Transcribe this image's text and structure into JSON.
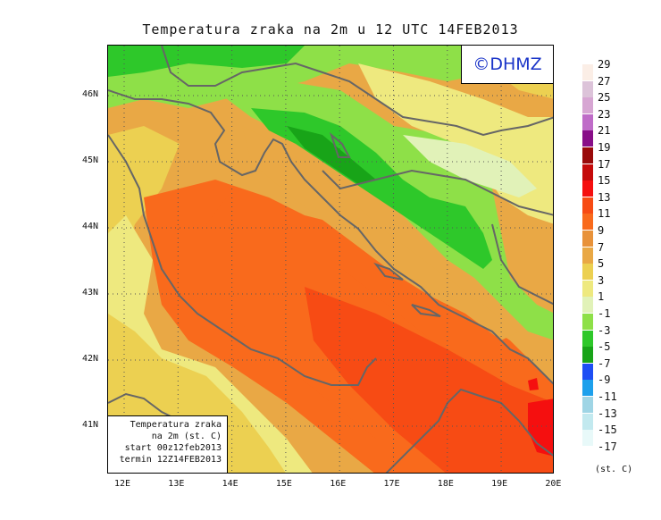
{
  "title": "Temperatura zraka na 2m u 12 UTC 14FEB2013",
  "logo": "©DHMZ",
  "info": {
    "line1": "Temperatura zraka",
    "line2": "na 2m (st. C)",
    "line3": "start 00z12feb2013",
    "line4": "termin 12Z14FEB2013"
  },
  "x_ticks": [
    "12E",
    "13E",
    "14E",
    "15E",
    "16E",
    "17E",
    "18E",
    "19E",
    "20E"
  ],
  "y_ticks": [
    "46N",
    "45N",
    "44N",
    "43N",
    "42N",
    "41N"
  ],
  "legend": {
    "units": "(st. C)",
    "items": [
      {
        "label": "29",
        "color": "#fbeee6"
      },
      {
        "label": "27",
        "color": "#dcc3d9"
      },
      {
        "label": "25",
        "color": "#d7a6d3"
      },
      {
        "label": "23",
        "color": "#bf6cc8"
      },
      {
        "label": "21",
        "color": "#880e88"
      },
      {
        "label": "19",
        "color": "#9a0a0a"
      },
      {
        "label": "17",
        "color": "#c50a0a"
      },
      {
        "label": "15",
        "color": "#f50f0f"
      },
      {
        "label": "13",
        "color": "#f74b14"
      },
      {
        "label": "11",
        "color": "#f96a1c"
      },
      {
        "label": "9",
        "color": "#e8923a"
      },
      {
        "label": "7",
        "color": "#e9a845"
      },
      {
        "label": "5",
        "color": "#ecd051"
      },
      {
        "label": "3",
        "color": "#eee97f"
      },
      {
        "label": "1",
        "color": "#e1f2b8"
      },
      {
        "label": "-1",
        "color": "#8ee048"
      },
      {
        "label": "-3",
        "color": "#2ec82a"
      },
      {
        "label": "-5",
        "color": "#18a418"
      },
      {
        "label": "-7",
        "color": "#1e4ef4"
      },
      {
        "label": "-9",
        "color": "#1da0ec"
      },
      {
        "label": "-11",
        "color": "#9fd5e5"
      },
      {
        "label": "-13",
        "color": "#c2e9ef"
      },
      {
        "label": "-15",
        "color": "#e8f9f9"
      },
      {
        "label": "-17",
        "color": "#ffffff"
      }
    ]
  }
}
